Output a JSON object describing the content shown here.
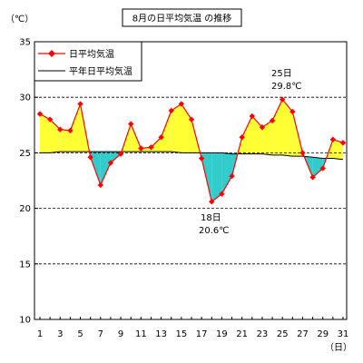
{
  "chart_data": {
    "type": "line",
    "title": "8月の日平均気温 の推移",
    "ylabel": "（℃）",
    "xlabel": "（日）",
    "ylim": [
      10,
      35
    ],
    "yticks": [
      10,
      15,
      20,
      25,
      30,
      35
    ],
    "grid": true,
    "legend_position": "top-left",
    "x": [
      1,
      2,
      3,
      4,
      5,
      6,
      7,
      8,
      9,
      10,
      11,
      12,
      13,
      14,
      15,
      16,
      17,
      18,
      19,
      20,
      21,
      22,
      23,
      24,
      25,
      26,
      27,
      28,
      29,
      30,
      31
    ],
    "xtick_labels": [
      "1",
      "3",
      "5",
      "7",
      "9",
      "11",
      "13",
      "15",
      "17",
      "19",
      "21",
      "23",
      "25",
      "27",
      "29",
      "31"
    ],
    "series": [
      {
        "name": "日平均気温",
        "color": "#ff0000",
        "marker": "diamond",
        "values": [
          28.5,
          28.0,
          27.1,
          27.0,
          29.4,
          24.6,
          22.1,
          24.1,
          24.9,
          27.6,
          25.4,
          25.5,
          26.4,
          28.8,
          29.4,
          28.0,
          24.5,
          20.6,
          21.3,
          22.9,
          26.4,
          28.3,
          27.3,
          27.9,
          29.8,
          28.7,
          25.0,
          22.8,
          23.6,
          26.2,
          25.9
        ]
      },
      {
        "name": "平年日平均気温",
        "color": "#000000",
        "marker": "none",
        "values": [
          25.0,
          25.0,
          25.1,
          25.1,
          25.1,
          25.1,
          25.1,
          25.1,
          25.1,
          25.1,
          25.1,
          25.1,
          25.1,
          25.1,
          25.0,
          25.0,
          25.0,
          25.0,
          25.0,
          24.9,
          24.9,
          24.9,
          24.9,
          24.8,
          24.8,
          24.7,
          24.7,
          24.6,
          24.5,
          24.5,
          24.4
        ]
      }
    ],
    "fill_colors": {
      "above": "#ffff33",
      "below": "#33cccc"
    },
    "annotations": [
      {
        "day": 25,
        "line1": "25日",
        "line2": "29.8℃",
        "placement": "above"
      },
      {
        "day": 18,
        "line1": "18日",
        "line2": "20.6℃",
        "placement": "below"
      }
    ]
  }
}
